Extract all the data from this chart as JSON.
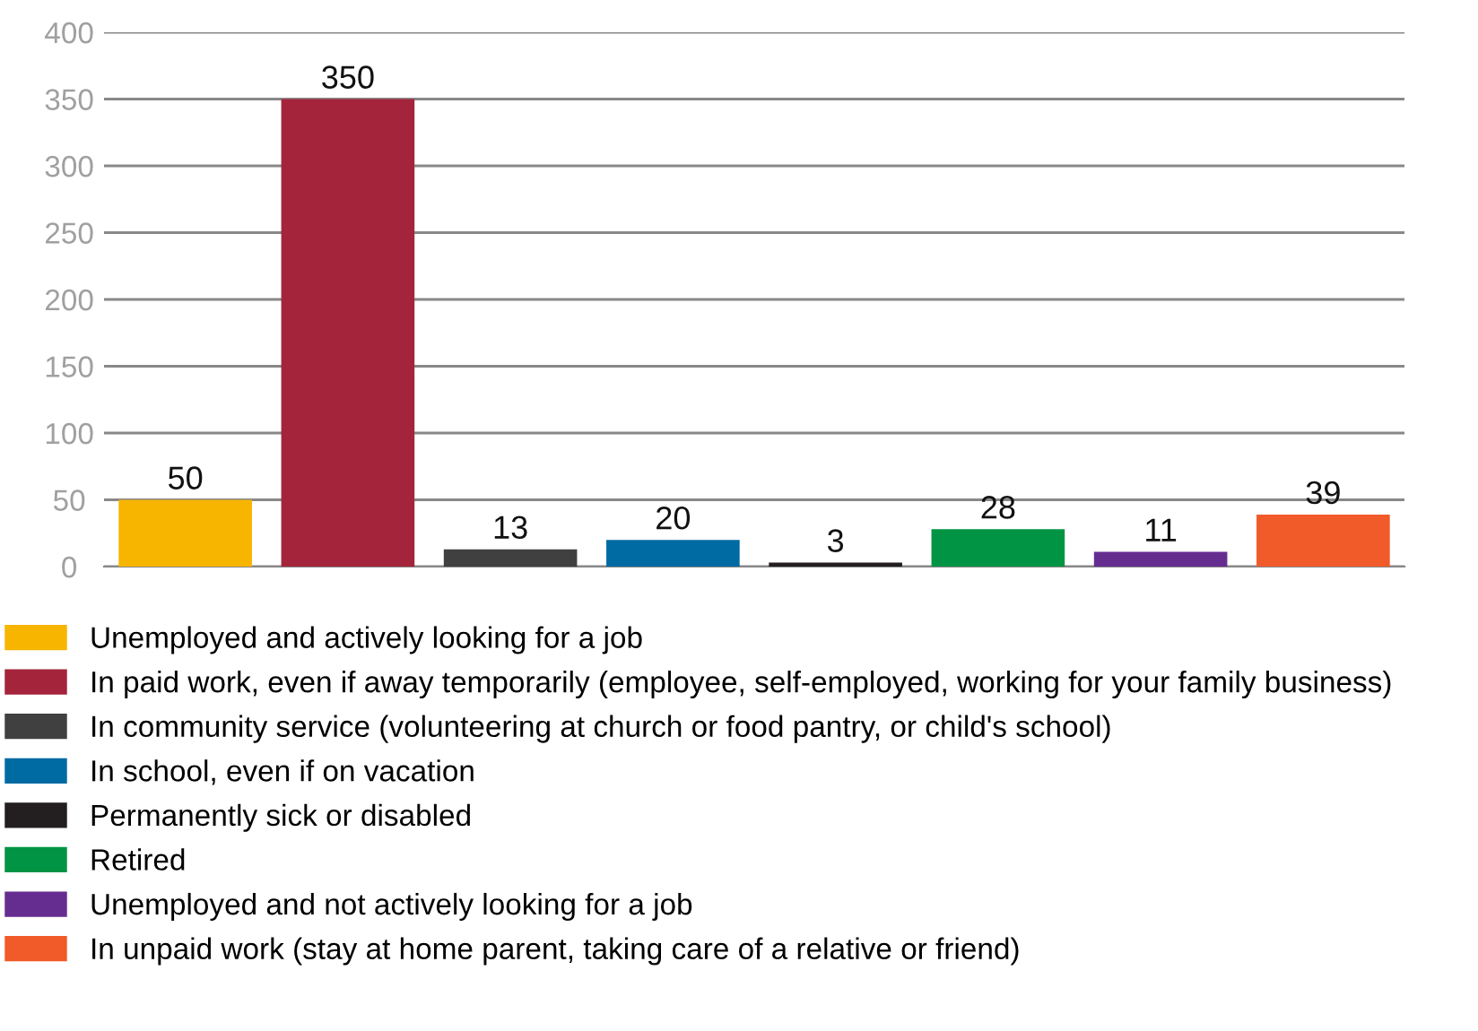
{
  "chart_data": {
    "type": "bar",
    "categories": [
      null,
      null,
      null,
      null,
      null,
      null,
      null,
      null
    ],
    "series": [
      {
        "name": "Unemployed and actively looking for a job",
        "color": "#f7b500",
        "values": [
          50,
          null,
          null,
          null,
          null,
          null,
          null,
          null
        ]
      },
      {
        "name": "In paid work, even if away temporarily (employee, self-employed, working for your family business)",
        "color": "#a4243b",
        "values": [
          null,
          350,
          null,
          null,
          null,
          null,
          null,
          null
        ]
      },
      {
        "name": "In community service (volunteering at church or food pantry, or child's school)",
        "color": "#404040",
        "values": [
          null,
          null,
          13,
          null,
          null,
          null,
          null,
          null
        ]
      },
      {
        "name": "In school, even if on vacation",
        "color": "#006aa3",
        "values": [
          null,
          null,
          null,
          20,
          null,
          null,
          null,
          null
        ]
      },
      {
        "name": "Permanently sick or disabled",
        "color": "#231f20",
        "values": [
          null,
          null,
          null,
          null,
          3,
          null,
          null,
          null
        ]
      },
      {
        "name": "Retired",
        "color": "#009444",
        "values": [
          null,
          null,
          null,
          null,
          null,
          28,
          null,
          null
        ]
      },
      {
        "name": "Unemployed and not actively looking for a job",
        "color": "#662d91",
        "values": [
          null,
          null,
          null,
          null,
          null,
          null,
          11,
          null
        ]
      },
      {
        "name": "In unpaid work (stay at home parent, taking care of a relative or friend)",
        "color": "#f15a29",
        "values": [
          null,
          null,
          null,
          null,
          null,
          null,
          null,
          39
        ]
      }
    ],
    "ylim": [
      0,
      400
    ],
    "yticks": [
      0,
      50,
      100,
      150,
      200,
      250,
      300,
      350,
      400
    ],
    "grid": "y",
    "legend": "bottom",
    "data_labels": true
  }
}
